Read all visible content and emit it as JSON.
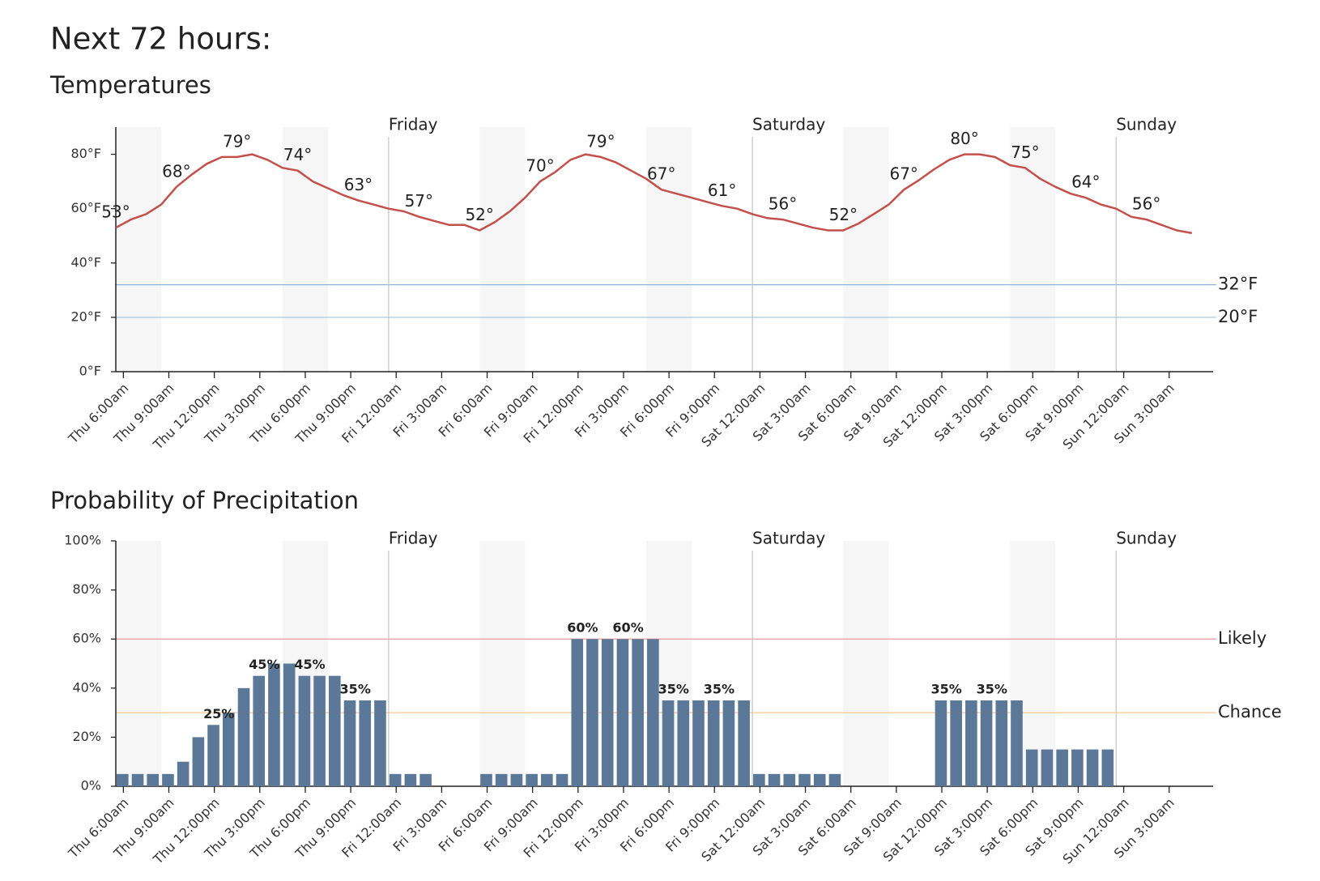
{
  "title": "Next 72 hours:",
  "chart_data": [
    {
      "type": "line",
      "title": "Temperatures",
      "categories": [
        "Thu 6:00am",
        null,
        null,
        "Thu 9:00am",
        null,
        null,
        "Thu 12:00pm",
        null,
        null,
        "Thu 3:00pm",
        null,
        null,
        "Thu 6:00pm",
        null,
        null,
        "Thu 9:00pm",
        null,
        null,
        "Fri 12:00am",
        null,
        null,
        "Fri 3:00am",
        null,
        null,
        "Fri 6:00am",
        null,
        null,
        "Fri 9:00am",
        null,
        null,
        "Fri 12:00pm",
        null,
        null,
        "Fri 3:00pm",
        null,
        null,
        "Fri 6:00pm",
        null,
        null,
        "Fri 9:00pm",
        null,
        null,
        "Sat 12:00am",
        null,
        null,
        "Sat 3:00am",
        null,
        null,
        "Sat 6:00am",
        null,
        null,
        "Sat 9:00am",
        null,
        null,
        "Sat 12:00pm",
        null,
        null,
        "Sat 3:00pm",
        null,
        null,
        "Sat 6:00pm",
        null,
        null,
        "Sat 9:00pm",
        null,
        null,
        "Sun 12:00am",
        null,
        null,
        "Sun 3:00am",
        null,
        null
      ],
      "values": [
        53,
        56,
        58,
        61.5,
        68,
        72.5,
        76.5,
        79,
        79,
        80,
        78,
        75,
        74,
        70,
        67.5,
        65,
        63,
        61.5,
        60,
        59,
        57,
        55.5,
        54,
        54,
        52,
        55,
        59,
        64,
        70,
        73.5,
        78,
        80,
        79,
        77,
        74,
        71,
        67,
        65.5,
        64,
        62.5,
        61,
        60,
        58,
        56.5,
        56,
        54.5,
        53,
        52,
        52,
        54.5,
        58,
        61.5,
        67,
        70.5,
        74.5,
        78,
        80,
        80,
        79,
        76,
        75,
        71,
        68,
        65.5,
        64,
        61.5,
        60,
        57,
        56,
        54,
        52,
        51
      ],
      "value_labels": [
        "53°",
        null,
        null,
        null,
        "68°",
        null,
        null,
        null,
        "79°",
        null,
        null,
        null,
        "74°",
        null,
        null,
        null,
        "63°",
        null,
        null,
        null,
        "57°",
        null,
        null,
        null,
        "52°",
        null,
        null,
        null,
        "70°",
        null,
        null,
        null,
        "79°",
        null,
        null,
        null,
        "67°",
        null,
        null,
        null,
        "61°",
        null,
        null,
        null,
        "56°",
        null,
        null,
        null,
        "52°",
        null,
        null,
        null,
        "67°",
        null,
        null,
        null,
        "80°",
        null,
        null,
        null,
        "75°",
        null,
        null,
        null,
        "64°",
        null,
        null,
        null,
        "56°",
        null,
        null,
        null
      ],
      "color": "#c4504c",
      "ylim": [
        0,
        90
      ],
      "yticks": [
        {
          "value": 0,
          "label": "0°F"
        },
        {
          "value": 20,
          "label": "20°F"
        },
        {
          "value": 40,
          "label": "40°F"
        },
        {
          "value": 60,
          "label": "60°F"
        },
        {
          "value": 80,
          "label": "80°F"
        }
      ],
      "reference_lines": [
        {
          "value": 32,
          "label": "32°F",
          "color": "#8fb3d9"
        },
        {
          "value": 20,
          "label": "20°F",
          "color": "#a9cbe0"
        }
      ],
      "day_markers": [
        {
          "at": "Fri 12:00am",
          "label": "Friday"
        },
        {
          "at": "Sat 12:00am",
          "label": "Saturday"
        },
        {
          "at": "Sun 12:00am",
          "label": "Sunday"
        }
      ]
    },
    {
      "type": "bar",
      "title": "Probability of Precipitation",
      "categories": [
        "Thu 6:00am",
        null,
        null,
        "Thu 9:00am",
        null,
        null,
        "Thu 12:00pm",
        null,
        null,
        "Thu 3:00pm",
        null,
        null,
        "Thu 6:00pm",
        null,
        null,
        "Thu 9:00pm",
        null,
        null,
        "Fri 12:00am",
        null,
        null,
        "Fri 3:00am",
        null,
        null,
        "Fri 6:00am",
        null,
        null,
        "Fri 9:00am",
        null,
        null,
        "Fri 12:00pm",
        null,
        null,
        "Fri 3:00pm",
        null,
        null,
        "Fri 6:00pm",
        null,
        null,
        "Fri 9:00pm",
        null,
        null,
        "Sat 12:00am",
        null,
        null,
        "Sat 3:00am",
        null,
        null,
        "Sat 6:00am",
        null,
        null,
        "Sat 9:00am",
        null,
        null,
        "Sat 12:00pm",
        null,
        null,
        "Sat 3:00pm",
        null,
        null,
        "Sat 6:00pm",
        null,
        null,
        "Sat 9:00pm",
        null,
        null,
        "Sun 12:00am",
        null,
        null,
        "Sun 3:00am",
        null,
        null
      ],
      "values": [
        5,
        5,
        5,
        5,
        10,
        20,
        25,
        30,
        40,
        45,
        50,
        50,
        45,
        45,
        45,
        35,
        35,
        35,
        5,
        5,
        5,
        0,
        0,
        0,
        5,
        5,
        5,
        5,
        5,
        5,
        60,
        60,
        60,
        60,
        60,
        60,
        35,
        35,
        35,
        35,
        35,
        35,
        5,
        5,
        5,
        5,
        5,
        5,
        0,
        0,
        0,
        0,
        0,
        0,
        35,
        35,
        35,
        35,
        35,
        35,
        15,
        15,
        15,
        15,
        15,
        15,
        0,
        0,
        0,
        0,
        0,
        0
      ],
      "value_labels": [
        null,
        null,
        null,
        null,
        null,
        null,
        "25%",
        null,
        null,
        "45%",
        null,
        null,
        "45%",
        null,
        null,
        "35%",
        null,
        null,
        null,
        null,
        null,
        null,
        null,
        null,
        null,
        null,
        null,
        null,
        null,
        null,
        "60%",
        null,
        null,
        "60%",
        null,
        null,
        "35%",
        null,
        null,
        "35%",
        null,
        null,
        null,
        null,
        null,
        null,
        null,
        null,
        null,
        null,
        null,
        null,
        null,
        null,
        "35%",
        null,
        null,
        "35%",
        null,
        null,
        null,
        null,
        null,
        null,
        null,
        null,
        null,
        null,
        null,
        null,
        null,
        null
      ],
      "color": "#5b7898",
      "ylim": [
        0,
        100
      ],
      "yticks": [
        {
          "value": 0,
          "label": "0%"
        },
        {
          "value": 20,
          "label": "20%"
        },
        {
          "value": 40,
          "label": "40%"
        },
        {
          "value": 60,
          "label": "60%"
        },
        {
          "value": 80,
          "label": "80%"
        },
        {
          "value": 100,
          "label": "100%"
        }
      ],
      "reference_lines": [
        {
          "value": 60,
          "label": "Likely",
          "color": "#f2a3a3"
        },
        {
          "value": 30,
          "label": "Chance",
          "color": "#fbc68d"
        }
      ],
      "day_markers": [
        {
          "at": "Fri 12:00am",
          "label": "Friday"
        },
        {
          "at": "Sat 12:00am",
          "label": "Saturday"
        },
        {
          "at": "Sun 12:00am",
          "label": "Sunday"
        }
      ]
    }
  ]
}
